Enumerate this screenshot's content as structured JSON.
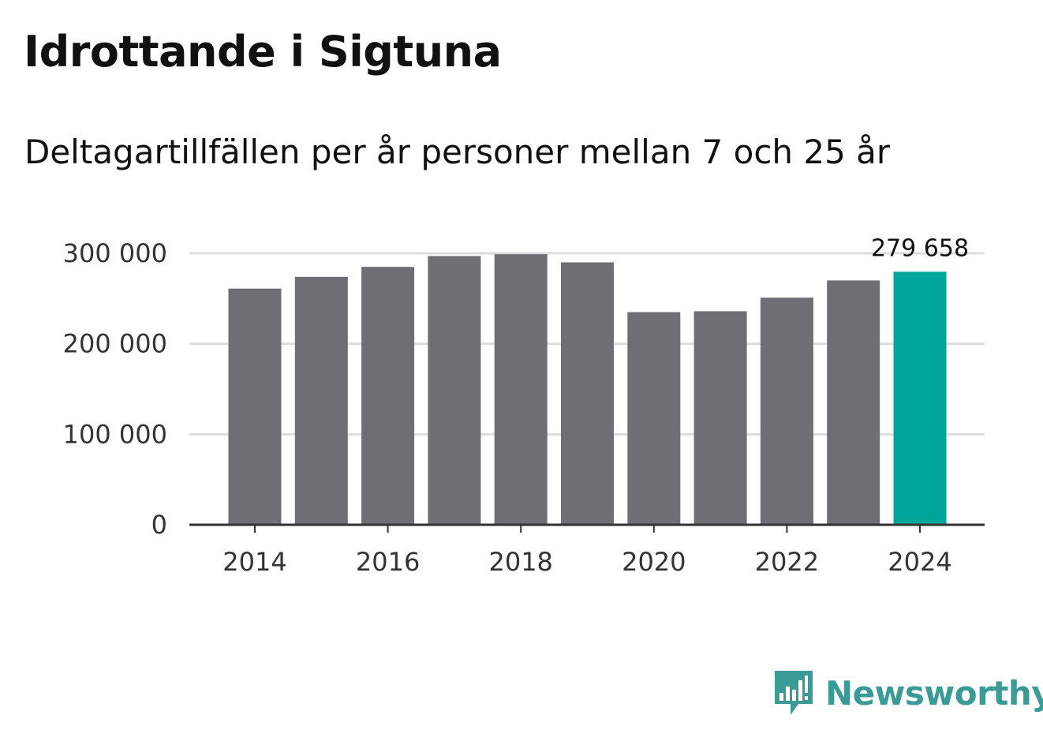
{
  "chart_data": {
    "type": "bar",
    "title": "Idrottande i Sigtuna",
    "subtitle": "Deltagartillfällen per år personer mellan 7 och 25 år",
    "categories": [
      2014,
      2015,
      2016,
      2017,
      2018,
      2019,
      2020,
      2021,
      2022,
      2023,
      2024
    ],
    "x_tick_labels": [
      "2014",
      "2016",
      "2018",
      "2020",
      "2022",
      "2024"
    ],
    "y_tick_labels": [
      "0",
      "100 000",
      "200 000",
      "300 000"
    ],
    "y_ticks": [
      0,
      100000,
      200000,
      300000
    ],
    "series": [
      {
        "name": "Deltagartillfällen",
        "values": [
          261000,
          274000,
          285000,
          297000,
          299000,
          290000,
          235000,
          236000,
          251000,
          270000,
          279658
        ]
      }
    ],
    "highlight": {
      "category": 2024,
      "value": 279658,
      "label": "279 658"
    },
    "ylim": [
      0,
      300000
    ],
    "grid": true,
    "legend": "none",
    "xlabel": "",
    "ylabel": ""
  },
  "colors": {
    "bar": "#6f6e74",
    "highlight": "#00a59b",
    "grid": "#dddddd",
    "axis": "#333333",
    "brand": "#3a9b96"
  },
  "brand": {
    "name": "Newsworthy",
    "icon": "newsworthy-logo-icon"
  }
}
